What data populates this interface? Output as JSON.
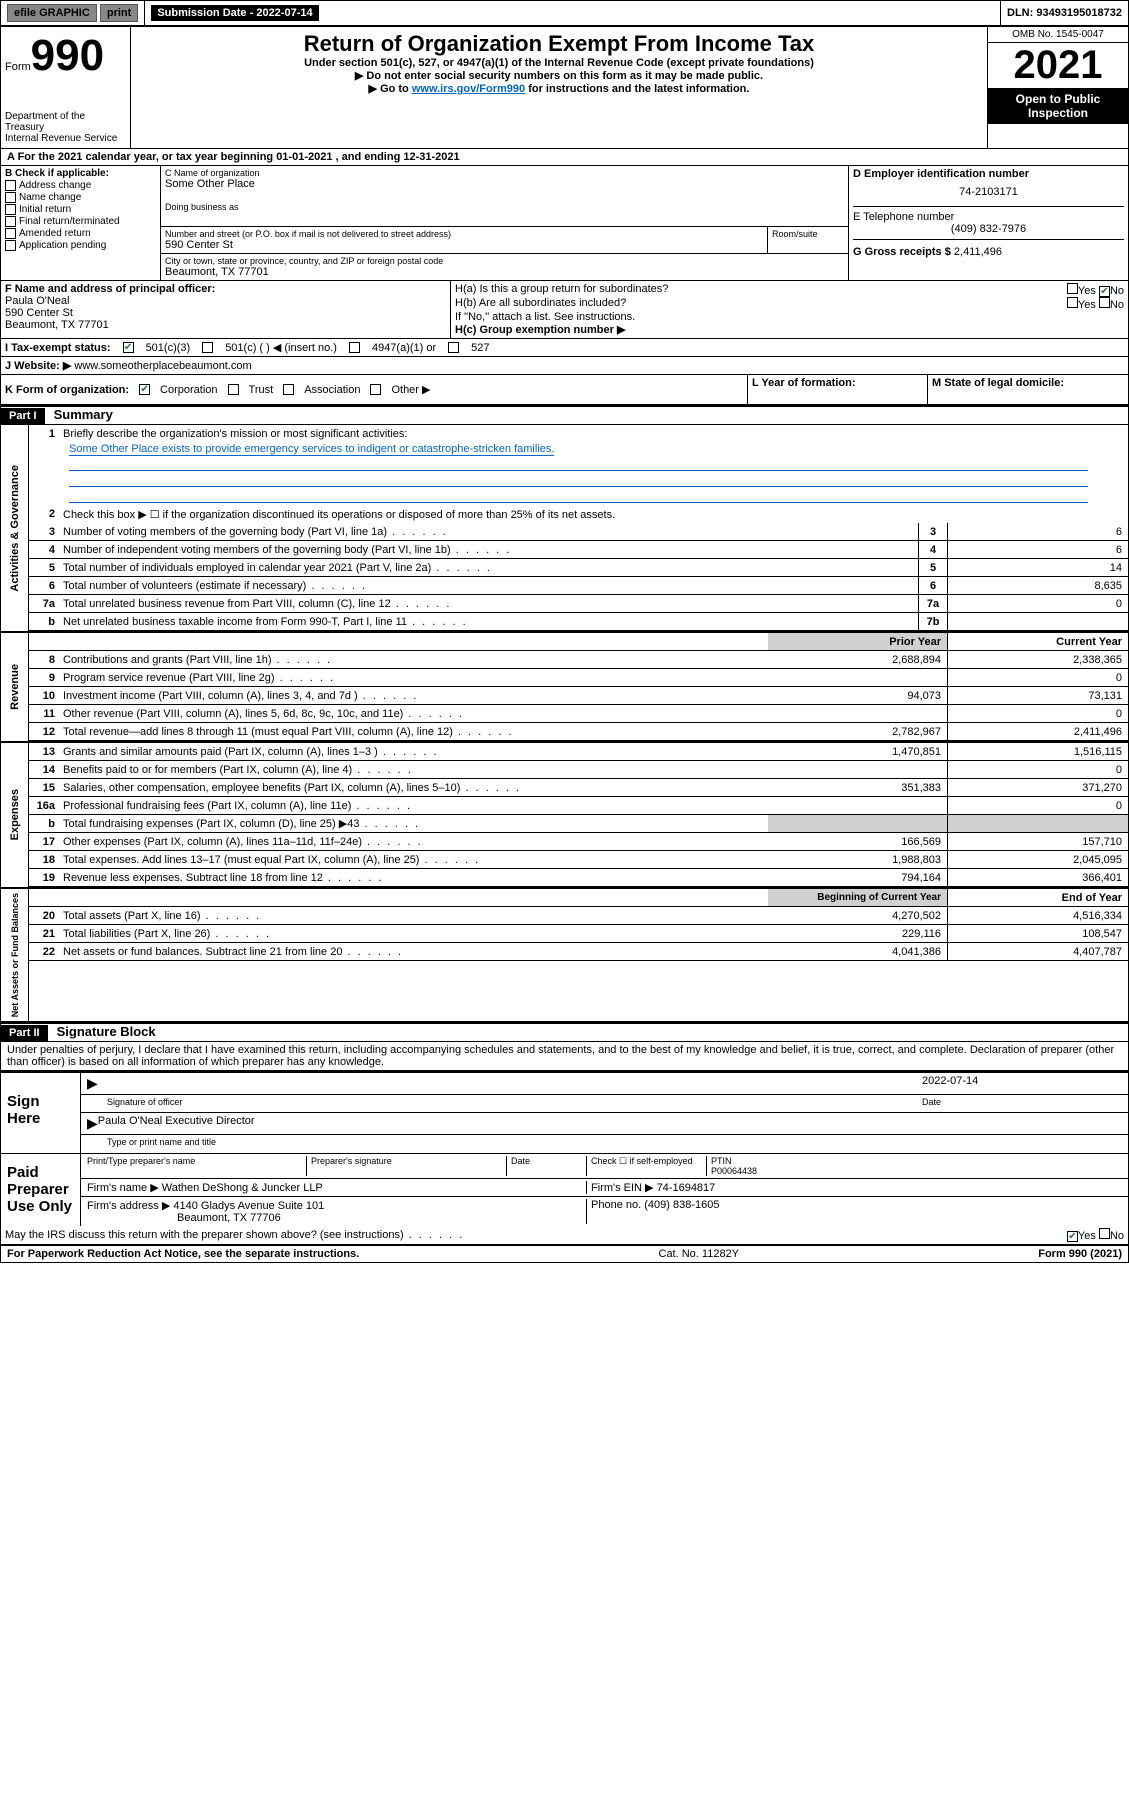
{
  "topbar": {
    "efile": "efile GRAPHIC",
    "print": "print",
    "subdate_label": "Submission Date - 2022-07-14",
    "dln_label": "DLN: 93493195018732"
  },
  "header": {
    "form_label": "Form",
    "form_num": "990",
    "dept": "Department of the Treasury",
    "irs": "Internal Revenue Service",
    "title": "Return of Organization Exempt From Income Tax",
    "sub1": "Under section 501(c), 527, or 4947(a)(1) of the Internal Revenue Code (except private foundations)",
    "sub2": "▶ Do not enter social security numbers on this form as it may be made public.",
    "sub3_pre": "▶ Go to ",
    "sub3_link": "www.irs.gov/Form990",
    "sub3_post": " for instructions and the latest information.",
    "omb": "OMB No. 1545-0047",
    "year": "2021",
    "inspect1": "Open to Public",
    "inspect2": "Inspection"
  },
  "section_a": {
    "text": "A For the 2021 calendar year, or tax year beginning 01-01-2021   , and ending 12-31-2021"
  },
  "section_b": {
    "label": "B Check if applicable:",
    "items": [
      "Address change",
      "Name change",
      "Initial return",
      "Final return/terminated",
      "Amended return",
      "Application pending"
    ]
  },
  "section_c": {
    "label": "C Name of organization",
    "name": "Some Other Place",
    "dba_label": "Doing business as",
    "addr_label": "Number and street (or P.O. box if mail is not delivered to street address)",
    "room_label": "Room/suite",
    "addr": "590 Center St",
    "city_label": "City or town, state or province, country, and ZIP or foreign postal code",
    "city": "Beaumont, TX  77701"
  },
  "section_d": {
    "label": "D Employer identification number",
    "ein": "74-2103171"
  },
  "section_e": {
    "label": "E Telephone number",
    "phone": "(409) 832-7976"
  },
  "section_g": {
    "label": "G Gross receipts $ ",
    "amount": "2,411,496"
  },
  "section_f": {
    "label": "F Name and address of principal officer:",
    "name": "Paula O'Neal",
    "addr1": "590 Center St",
    "addr2": "Beaumont, TX  77701"
  },
  "section_h": {
    "ha": "H(a)  Is this a group return for subordinates?",
    "hb": "H(b)  Are all subordinates included?",
    "hb_note": "If \"No,\" attach a list. See instructions.",
    "hc": "H(c)  Group exemption number ▶",
    "yes": "Yes",
    "no": "No"
  },
  "section_i": {
    "label": "I    Tax-exempt status:",
    "opts": [
      "501(c)(3)",
      "501(c) (  ) ◀ (insert no.)",
      "4947(a)(1) or",
      "527"
    ]
  },
  "section_j": {
    "label": "J    Website: ▶",
    "url": "www.someotherplacebeaumont.com"
  },
  "section_k": {
    "label": "K Form of organization:",
    "opts": [
      "Corporation",
      "Trust",
      "Association",
      "Other ▶"
    ]
  },
  "section_l": {
    "label": "L Year of formation:"
  },
  "section_m": {
    "label": "M State of legal domicile:"
  },
  "part1": {
    "header": "Part I",
    "title": "Summary",
    "line1_label": "Briefly describe the organization's mission or most significant activities:",
    "line1_text": "Some Other Place exists to provide emergency services to indigent or catastrophe-stricken families.",
    "line2": "Check this box ▶ ☐  if the organization discontinued its operations or disposed of more than 25% of its net assets.",
    "governance_label": "Activities & Governance",
    "revenue_label": "Revenue",
    "expenses_label": "Expenses",
    "netassets_label": "Net Assets or Fund Balances",
    "lines_gov": [
      {
        "n": "3",
        "t": "Number of voting members of the governing body (Part VI, line 1a)",
        "box": "3",
        "v": "6"
      },
      {
        "n": "4",
        "t": "Number of independent voting members of the governing body (Part VI, line 1b)",
        "box": "4",
        "v": "6"
      },
      {
        "n": "5",
        "t": "Total number of individuals employed in calendar year 2021 (Part V, line 2a)",
        "box": "5",
        "v": "14"
      },
      {
        "n": "6",
        "t": "Total number of volunteers (estimate if necessary)",
        "box": "6",
        "v": "8,635"
      },
      {
        "n": "7a",
        "t": "Total unrelated business revenue from Part VIII, column (C), line 12",
        "box": "7a",
        "v": "0"
      },
      {
        "n": "b",
        "t": "Net unrelated business taxable income from Form 990-T, Part I, line 11",
        "box": "7b",
        "v": ""
      }
    ],
    "col_prior": "Prior Year",
    "col_current": "Current Year",
    "lines_rev": [
      {
        "n": "8",
        "t": "Contributions and grants (Part VIII, line 1h)",
        "p": "2,688,894",
        "c": "2,338,365"
      },
      {
        "n": "9",
        "t": "Program service revenue (Part VIII, line 2g)",
        "p": "",
        "c": "0"
      },
      {
        "n": "10",
        "t": "Investment income (Part VIII, column (A), lines 3, 4, and 7d )",
        "p": "94,073",
        "c": "73,131"
      },
      {
        "n": "11",
        "t": "Other revenue (Part VIII, column (A), lines 5, 6d, 8c, 9c, 10c, and 11e)",
        "p": "",
        "c": "0"
      },
      {
        "n": "12",
        "t": "Total revenue—add lines 8 through 11 (must equal Part VIII, column (A), line 12)",
        "p": "2,782,967",
        "c": "2,411,496"
      }
    ],
    "lines_exp": [
      {
        "n": "13",
        "t": "Grants and similar amounts paid (Part IX, column (A), lines 1–3 )",
        "p": "1,470,851",
        "c": "1,516,115"
      },
      {
        "n": "14",
        "t": "Benefits paid to or for members (Part IX, column (A), line 4)",
        "p": "",
        "c": "0"
      },
      {
        "n": "15",
        "t": "Salaries, other compensation, employee benefits (Part IX, column (A), lines 5–10)",
        "p": "351,383",
        "c": "371,270"
      },
      {
        "n": "16a",
        "t": "Professional fundraising fees (Part IX, column (A), line 11e)",
        "p": "",
        "c": "0"
      },
      {
        "n": "b",
        "t": "Total fundraising expenses (Part IX, column (D), line 25) ▶43",
        "p": "GRAY",
        "c": "GRAY"
      },
      {
        "n": "17",
        "t": "Other expenses (Part IX, column (A), lines 11a–11d, 11f–24e)",
        "p": "166,569",
        "c": "157,710"
      },
      {
        "n": "18",
        "t": "Total expenses. Add lines 13–17 (must equal Part IX, column (A), line 25)",
        "p": "1,988,803",
        "c": "2,045,095"
      },
      {
        "n": "19",
        "t": "Revenue less expenses. Subtract line 18 from line 12",
        "p": "794,164",
        "c": "366,401"
      }
    ],
    "col_begin": "Beginning of Current Year",
    "col_end": "End of Year",
    "lines_net": [
      {
        "n": "20",
        "t": "Total assets (Part X, line 16)",
        "p": "4,270,502",
        "c": "4,516,334"
      },
      {
        "n": "21",
        "t": "Total liabilities (Part X, line 26)",
        "p": "229,116",
        "c": "108,547"
      },
      {
        "n": "22",
        "t": "Net assets or fund balances. Subtract line 21 from line 20",
        "p": "4,041,386",
        "c": "4,407,787"
      }
    ]
  },
  "part2": {
    "header": "Part II",
    "title": "Signature Block",
    "declaration": "Under penalties of perjury, I declare that I have examined this return, including accompanying schedules and statements, and to the best of my knowledge and belief, it is true, correct, and complete. Declaration of preparer (other than officer) is based on all information of which preparer has any knowledge."
  },
  "sign": {
    "label": "Sign Here",
    "sig_label": "Signature of officer",
    "date_label": "Date",
    "date": "2022-07-14",
    "name": "Paula O'Neal  Executive Director",
    "name_label": "Type or print name and title"
  },
  "preparer": {
    "label": "Paid Preparer Use Only",
    "col1": "Print/Type preparer's name",
    "col2": "Preparer's signature",
    "col3": "Date",
    "check_label": "Check ☐ if self-employed",
    "ptin_label": "PTIN",
    "ptin": "P00064438",
    "firm_name_label": "Firm's name     ▶",
    "firm_name": "Wathen DeShong & Juncker LLP",
    "firm_ein_label": "Firm's EIN ▶",
    "firm_ein": "74-1694817",
    "firm_addr_label": "Firm's address ▶",
    "firm_addr1": "4140 Gladys Avenue Suite 101",
    "firm_addr2": "Beaumont, TX  77706",
    "phone_label": "Phone no.",
    "phone": "(409) 838-1605"
  },
  "discuss": {
    "text": "May the IRS discuss this return with the preparer shown above? (see instructions)",
    "yes": "Yes",
    "no": "No"
  },
  "footer": {
    "left": "For Paperwork Reduction Act Notice, see the separate instructions.",
    "mid": "Cat. No. 11282Y",
    "right": "Form 990 (2021)"
  }
}
